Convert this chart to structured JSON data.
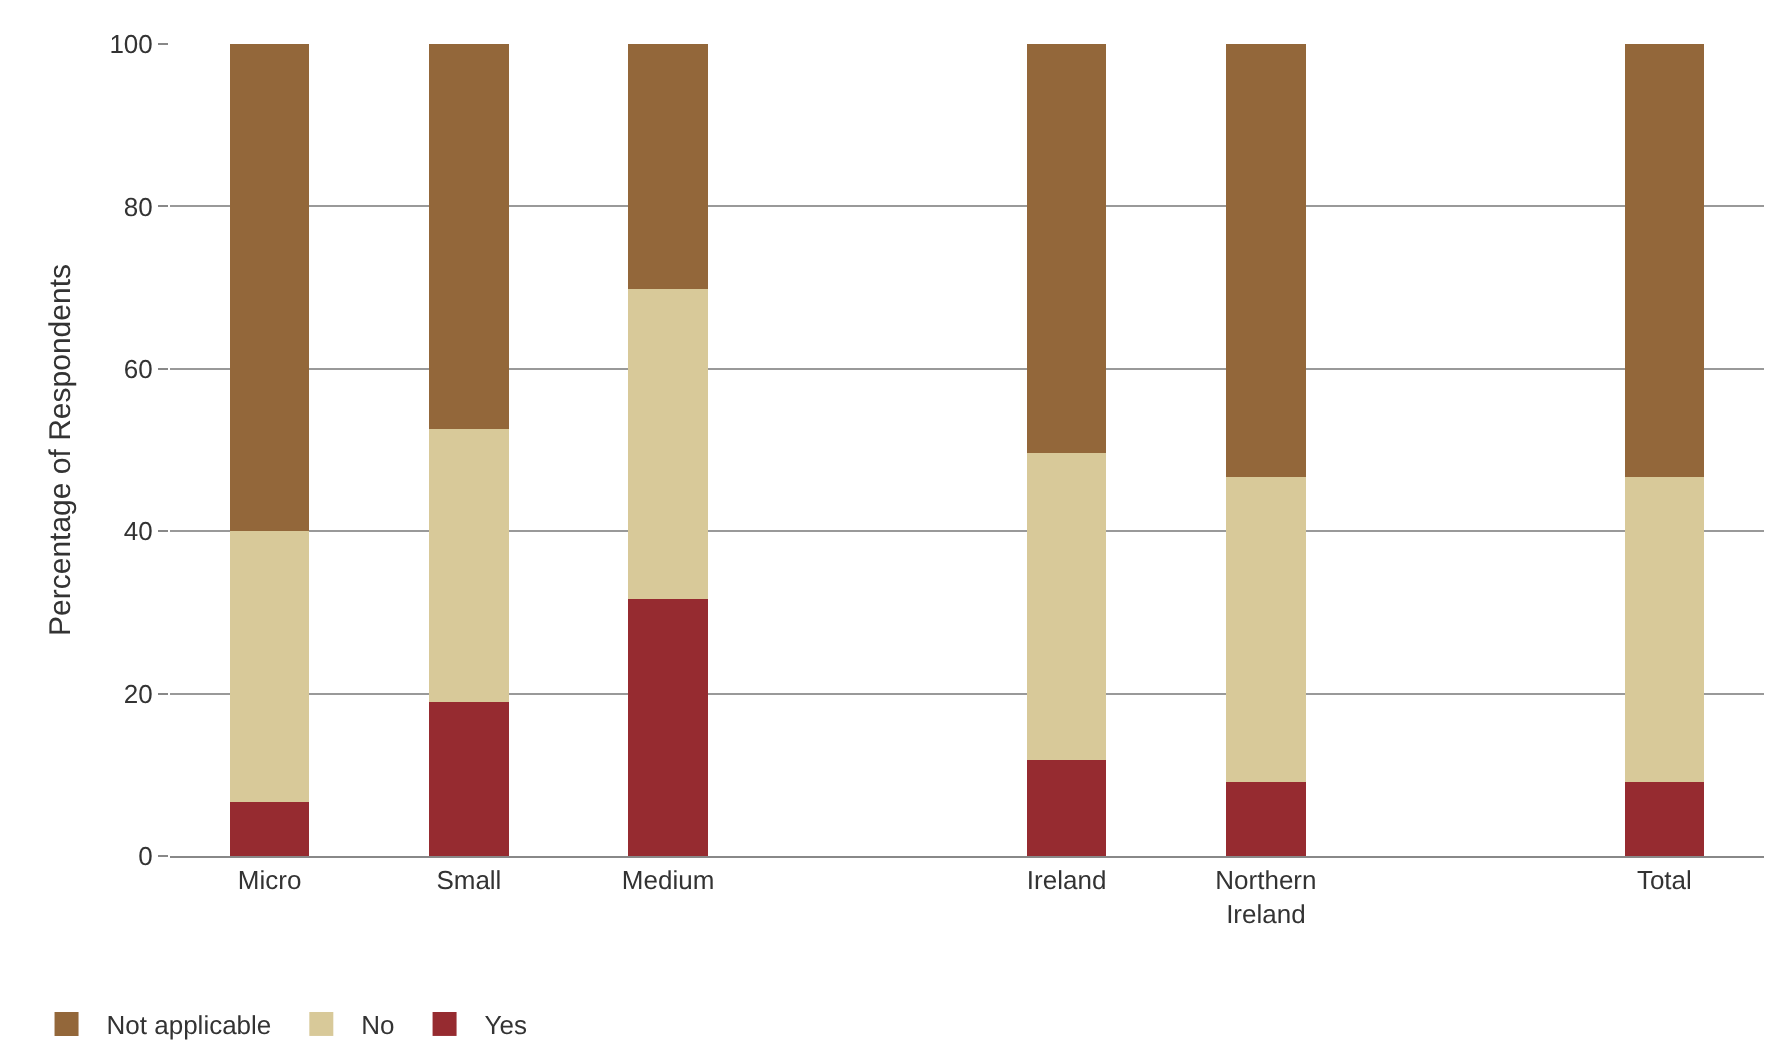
{
  "chart_data": {
    "type": "bar",
    "stacked": true,
    "ylabel": "Percentage of Respondents",
    "categories": [
      "Micro",
      "Small",
      "Medium",
      null,
      "Ireland",
      "Northern Ireland",
      null,
      "Total"
    ],
    "series": [
      {
        "name": "Yes",
        "color": "#962b30",
        "values": [
          6.6,
          19,
          31.7,
          null,
          11.8,
          9.1,
          null,
          9.1
        ]
      },
      {
        "name": "No",
        "color": "#d8c999",
        "values": [
          33.4,
          33.6,
          38.1,
          null,
          37.8,
          37.6,
          null,
          37.6
        ]
      },
      {
        "name": "Not applicable",
        "color": "#93673a",
        "values": [
          60,
          47.4,
          30.2,
          null,
          50.4,
          53.3,
          null,
          53.3
        ]
      }
    ],
    "ylim": [
      0,
      100
    ],
    "yticks": [
      0,
      20,
      40,
      60,
      80,
      100
    ],
    "grid": "y",
    "legend": "bottom left"
  }
}
